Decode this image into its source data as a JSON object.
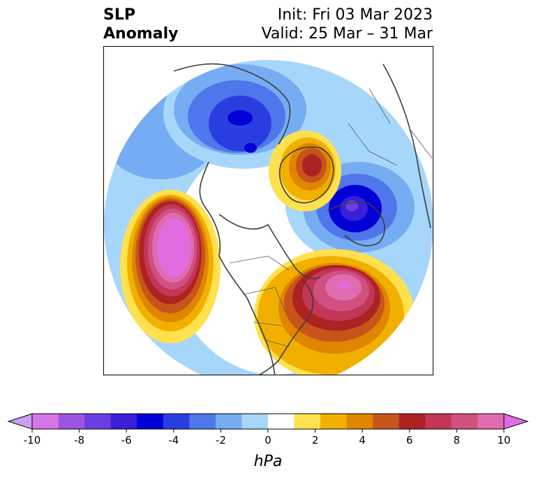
{
  "header": {
    "title_line1": "SLP",
    "title_line2": "Anomaly",
    "init_label": "Init: Fri 03 Mar 2023",
    "valid_label": "Valid: 25 Mar – 31 Mar"
  },
  "colorbar": {
    "unit": "hPa",
    "min": -10,
    "max": 10,
    "tick_values": [
      -10,
      -8,
      -6,
      -4,
      -2,
      0,
      2,
      4,
      6,
      8,
      10
    ],
    "tick_labels": [
      "-10",
      "-8",
      "-6",
      "-4",
      "-2",
      "0",
      "2",
      "4",
      "6",
      "8",
      "10"
    ],
    "bin_colors": [
      "#d676e6",
      "#9c55e0",
      "#6a3ee0",
      "#3a1ed8",
      "#0000d6",
      "#2a3ee0",
      "#4f76ea",
      "#76adf2",
      "#a6d6fa",
      "#ffffff",
      "#ffe14f",
      "#f1b000",
      "#e08500",
      "#c7541a",
      "#ad2222",
      "#c23758",
      "#d15080",
      "#e06cb0"
    ],
    "under_color": "#c89ff3",
    "over_color": "#e06ce0"
  },
  "map": {
    "projection": "north-polar-stereographic",
    "anomalies": [
      {
        "name": "north-pacific-high",
        "sign": "positive",
        "peak_hpa": 10
      },
      {
        "name": "north-atlantic-high",
        "sign": "positive",
        "peak_hpa": 9
      },
      {
        "name": "siberian-low",
        "sign": "negative",
        "peak_hpa": -7
      },
      {
        "name": "scandinavian-low",
        "sign": "negative",
        "peak_hpa": -7
      },
      {
        "name": "arctic-high",
        "sign": "positive",
        "peak_hpa": 7
      }
    ]
  }
}
